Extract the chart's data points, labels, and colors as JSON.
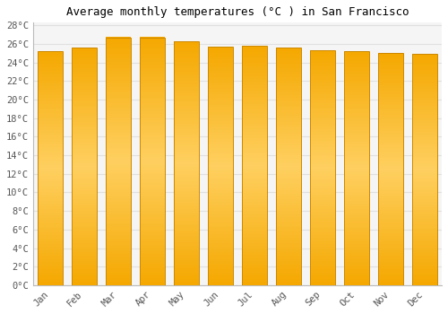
{
  "title": "Average monthly temperatures (°C ) in San Francisco",
  "months": [
    "Jan",
    "Feb",
    "Mar",
    "Apr",
    "May",
    "Jun",
    "Jul",
    "Aug",
    "Sep",
    "Oct",
    "Nov",
    "Dec"
  ],
  "values": [
    25.2,
    25.6,
    26.7,
    26.7,
    26.3,
    25.7,
    25.8,
    25.6,
    25.3,
    25.2,
    25.0,
    24.9
  ],
  "bar_color_top": "#F5A800",
  "bar_color_mid": "#FFD060",
  "bar_color_bottom": "#F5A800",
  "bar_edge_color": "#CC8800",
  "background_color": "#FFFFFF",
  "plot_bg_color": "#F5F5F5",
  "grid_color": "#E0E0E0",
  "ylim": [
    0,
    28
  ],
  "ytick_step": 2,
  "title_fontsize": 9,
  "tick_fontsize": 7.5,
  "font_family": "monospace",
  "bar_width": 0.72
}
